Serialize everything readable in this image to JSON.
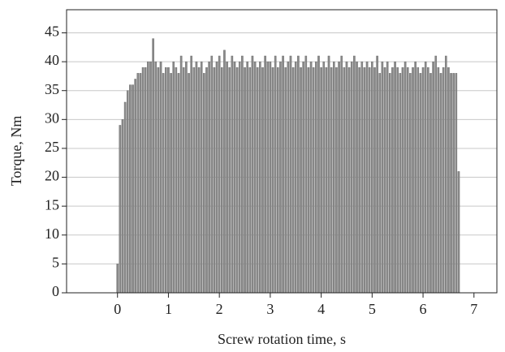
{
  "chart_data": {
    "type": "bar",
    "x_label": "Screw rotation time, s",
    "y_label": "Torque, Nm",
    "x": [
      0,
      0.05,
      0.1,
      0.15,
      0.2,
      0.25,
      0.3,
      0.35,
      0.4,
      0.45,
      0.5,
      0.55,
      0.6,
      0.65,
      0.7,
      0.75,
      0.8,
      0.85,
      0.9,
      0.95,
      1,
      1.05,
      1.1,
      1.15,
      1.2,
      1.25,
      1.3,
      1.35,
      1.4,
      1.45,
      1.5,
      1.55,
      1.6,
      1.65,
      1.7,
      1.75,
      1.8,
      1.85,
      1.9,
      1.95,
      2,
      2.05,
      2.1,
      2.15,
      2.2,
      2.25,
      2.3,
      2.35,
      2.4,
      2.45,
      2.5,
      2.55,
      2.6,
      2.65,
      2.7,
      2.75,
      2.8,
      2.85,
      2.9,
      2.95,
      3,
      3.05,
      3.1,
      3.15,
      3.2,
      3.25,
      3.3,
      3.35,
      3.4,
      3.45,
      3.5,
      3.55,
      3.6,
      3.65,
      3.7,
      3.75,
      3.8,
      3.85,
      3.9,
      3.95,
      4,
      4.05,
      4.1,
      4.15,
      4.2,
      4.25,
      4.3,
      4.35,
      4.4,
      4.45,
      4.5,
      4.55,
      4.6,
      4.65,
      4.7,
      4.75,
      4.8,
      4.85,
      4.9,
      4.95,
      5,
      5.05,
      5.1,
      5.15,
      5.2,
      5.25,
      5.3,
      5.35,
      5.4,
      5.45,
      5.5,
      5.55,
      5.6,
      5.65,
      5.7,
      5.75,
      5.8,
      5.85,
      5.9,
      5.95,
      6,
      6.05,
      6.1,
      6.15,
      6.2,
      6.25,
      6.3,
      6.35,
      6.4,
      6.45,
      6.5,
      6.55,
      6.6,
      6.65,
      6.7
    ],
    "values": [
      5,
      29,
      30,
      33,
      35,
      36,
      36,
      37,
      38,
      38,
      39,
      39,
      40,
      40,
      44,
      40,
      39,
      40,
      38,
      39,
      39,
      38,
      40,
      39,
      38,
      41,
      39,
      40,
      38,
      41,
      39,
      40,
      39,
      40,
      38,
      39,
      40,
      41,
      39,
      40,
      41,
      39,
      42,
      40,
      39,
      41,
      40,
      39,
      40,
      41,
      39,
      40,
      39,
      41,
      40,
      39,
      40,
      39,
      41,
      40,
      40,
      39,
      41,
      39,
      40,
      41,
      39,
      40,
      41,
      39,
      40,
      41,
      39,
      40,
      41,
      39,
      40,
      39,
      40,
      41,
      39,
      40,
      39,
      41,
      39,
      40,
      39,
      40,
      41,
      39,
      40,
      39,
      40,
      41,
      40,
      39,
      40,
      39,
      40,
      39,
      40,
      39,
      41,
      38,
      40,
      39,
      40,
      38,
      39,
      40,
      39,
      38,
      39,
      40,
      39,
      38,
      39,
      40,
      39,
      38,
      39,
      40,
      39,
      38,
      40,
      41,
      39,
      38,
      39,
      41,
      39,
      38,
      38,
      38,
      21
    ],
    "color": "#8a8a8a",
    "xlim": [
      -1,
      7.45
    ],
    "xticks": [
      0,
      1,
      2,
      3,
      4,
      5,
      6,
      7
    ],
    "ylim": [
      0,
      49
    ],
    "yticks": [
      0,
      5,
      10,
      15,
      20,
      25,
      30,
      35,
      40,
      45
    ],
    "grid": true
  }
}
